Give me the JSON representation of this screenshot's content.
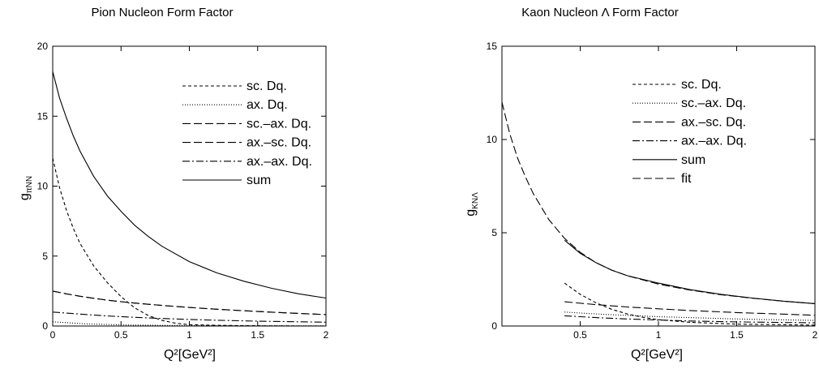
{
  "chart_data": [
    {
      "type": "line",
      "title": "Pion Nucleon Form Factor",
      "xlabel": "Q²[GeV²]",
      "ylabel_main": "g",
      "ylabel_sub": "πNN",
      "xlim": [
        0,
        2
      ],
      "ylim": [
        0,
        20
      ],
      "xticks": [
        0,
        0.5,
        1,
        1.5,
        2
      ],
      "xtick_labels": [
        "0",
        "0.5",
        "1",
        "1.5",
        "2"
      ],
      "yticks": [
        0,
        5,
        10,
        15,
        20
      ],
      "ytick_labels": [
        "0",
        "5",
        "10",
        "15",
        "20"
      ],
      "grid": false,
      "legend_position": "top-right",
      "series": [
        {
          "name": "sc. Dq.",
          "dash": "4,3",
          "x": [
            0,
            0.05,
            0.1,
            0.15,
            0.2,
            0.3,
            0.4,
            0.5,
            0.6,
            0.7,
            0.8,
            0.9,
            1.0,
            1.2,
            1.5,
            2.0
          ],
          "y": [
            12.0,
            9.9,
            8.3,
            7.0,
            5.9,
            4.3,
            3.1,
            2.1,
            1.3,
            0.75,
            0.4,
            0.2,
            0.1,
            0.05,
            0.02,
            0.0
          ]
        },
        {
          "name": "ax. Dq.",
          "dash": "1,2",
          "x": [
            0,
            0.25,
            0.5,
            0.75,
            1.0,
            1.5,
            2.0
          ],
          "y": [
            0.3,
            0.15,
            0.08,
            0.05,
            0.03,
            0.02,
            0.01
          ]
        },
        {
          "name": "sc.–ax. Dq.",
          "dash": "10,4",
          "x": [
            0,
            0.1,
            0.2,
            0.3,
            0.4,
            0.5,
            0.6,
            0.8,
            1.0,
            1.2,
            1.4,
            1.6,
            1.8,
            2.0
          ],
          "y": [
            2.5,
            2.3,
            2.13,
            1.98,
            1.85,
            1.74,
            1.64,
            1.47,
            1.33,
            1.2,
            1.09,
            0.99,
            0.9,
            0.82
          ]
        },
        {
          "name": "ax.–sc. Dq.",
          "dash": "10,4",
          "x": [
            0,
            0.1,
            0.2,
            0.3,
            0.4,
            0.5,
            0.6,
            0.8,
            1.0,
            1.2,
            1.4,
            1.6,
            1.8,
            2.0
          ],
          "y": [
            2.5,
            2.3,
            2.13,
            1.98,
            1.85,
            1.74,
            1.64,
            1.47,
            1.33,
            1.2,
            1.09,
            0.99,
            0.9,
            0.82
          ]
        },
        {
          "name": "ax.–ax. Dq.",
          "dash": "9,3,2,3",
          "x": [
            0,
            0.2,
            0.4,
            0.6,
            0.8,
            1.0,
            1.2,
            1.5,
            2.0
          ],
          "y": [
            1.0,
            0.85,
            0.72,
            0.62,
            0.54,
            0.47,
            0.41,
            0.35,
            0.27
          ]
        },
        {
          "name": "sum",
          "dash": "",
          "x": [
            0,
            0.05,
            0.1,
            0.15,
            0.2,
            0.3,
            0.4,
            0.5,
            0.6,
            0.7,
            0.8,
            1.0,
            1.2,
            1.4,
            1.6,
            1.8,
            2.0
          ],
          "y": [
            18.2,
            16.3,
            14.9,
            13.6,
            12.5,
            10.7,
            9.3,
            8.2,
            7.2,
            6.4,
            5.7,
            4.6,
            3.8,
            3.2,
            2.7,
            2.3,
            2.0
          ]
        }
      ]
    },
    {
      "type": "line",
      "title": "Kaon Nucleon Λ Form Factor",
      "xlabel": "Q²[GeV²]",
      "ylabel_main": "g",
      "ylabel_sub": "KNΛ",
      "xlim": [
        0,
        2
      ],
      "ylim": [
        0,
        15
      ],
      "xticks": [
        0.5,
        1,
        1.5,
        2
      ],
      "xtick_labels": [
        "0.5",
        "1",
        "1.5",
        "2"
      ],
      "yticks": [
        0,
        5,
        10,
        15
      ],
      "ytick_labels": [
        "0",
        "5",
        "10",
        "15"
      ],
      "grid": false,
      "legend_position": "top-right",
      "series": [
        {
          "name": "sc. Dq.",
          "dash": "4,3",
          "x": [
            0.4,
            0.5,
            0.6,
            0.7,
            0.8,
            0.9,
            1.0,
            1.2,
            1.5,
            2.0
          ],
          "y": [
            2.3,
            1.7,
            1.25,
            0.9,
            0.65,
            0.47,
            0.34,
            0.2,
            0.1,
            0.05
          ]
        },
        {
          "name": "sc.–ax. Dq.",
          "dash": "1,2",
          "x": [
            0.4,
            0.6,
            0.8,
            1.0,
            1.2,
            1.5,
            2.0
          ],
          "y": [
            0.75,
            0.65,
            0.57,
            0.5,
            0.45,
            0.38,
            0.3
          ]
        },
        {
          "name": "ax.–sc. Dq.",
          "dash": "10,4",
          "x": [
            0.4,
            0.6,
            0.8,
            1.0,
            1.2,
            1.5,
            2.0
          ],
          "y": [
            1.3,
            1.15,
            1.02,
            0.92,
            0.83,
            0.72,
            0.58
          ]
        },
        {
          "name": "ax.–ax. Dq.",
          "dash": "9,3,2,3",
          "x": [
            0.4,
            0.6,
            0.8,
            1.0,
            1.2,
            1.5,
            2.0
          ],
          "y": [
            0.55,
            0.45,
            0.38,
            0.32,
            0.27,
            0.22,
            0.17
          ]
        },
        {
          "name": "sum",
          "dash": "",
          "x": [
            0.4,
            0.5,
            0.6,
            0.7,
            0.8,
            1.0,
            1.2,
            1.4,
            1.6,
            1.8,
            2.0
          ],
          "y": [
            4.6,
            3.9,
            3.4,
            3.0,
            2.7,
            2.3,
            1.95,
            1.7,
            1.5,
            1.33,
            1.2
          ]
        },
        {
          "name": "fit",
          "dash": "10,4",
          "x": [
            0,
            0.05,
            0.1,
            0.15,
            0.2,
            0.3,
            0.4,
            0.5,
            0.6,
            0.7,
            0.8,
            1.0,
            1.2,
            1.4,
            1.6,
            1.8,
            2.0
          ],
          "y": [
            12.0,
            10.3,
            9.0,
            8.0,
            7.1,
            5.7,
            4.7,
            3.95,
            3.4,
            3.0,
            2.7,
            2.25,
            1.93,
            1.68,
            1.49,
            1.33,
            1.2
          ]
        }
      ]
    }
  ]
}
